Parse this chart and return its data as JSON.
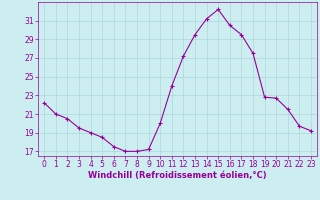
{
  "x": [
    0,
    1,
    2,
    3,
    4,
    5,
    6,
    7,
    8,
    9,
    10,
    11,
    12,
    13,
    14,
    15,
    16,
    17,
    18,
    19,
    20,
    21,
    22,
    23
  ],
  "y": [
    22.2,
    21.0,
    20.5,
    19.5,
    19.0,
    18.5,
    17.5,
    17.0,
    17.0,
    17.2,
    20.0,
    24.0,
    27.2,
    29.5,
    31.2,
    32.2,
    30.5,
    29.5,
    27.5,
    22.8,
    22.7,
    21.5,
    19.7,
    19.2
  ],
  "line_color": "#990099",
  "marker": "+",
  "marker_size": 3,
  "marker_linewidth": 0.8,
  "background_color": "#cceef0",
  "grid_color": "#aad8dc",
  "xlabel": "Windchill (Refroidissement éolien,°C)",
  "xlim": [
    -0.5,
    23.5
  ],
  "ylim": [
    16.5,
    33.0
  ],
  "yticks": [
    17,
    19,
    21,
    23,
    25,
    27,
    29,
    31
  ],
  "xticks": [
    0,
    1,
    2,
    3,
    4,
    5,
    6,
    7,
    8,
    9,
    10,
    11,
    12,
    13,
    14,
    15,
    16,
    17,
    18,
    19,
    20,
    21,
    22,
    23
  ],
  "axis_color": "#990099",
  "tick_color": "#990099",
  "label_color": "#990099",
  "tick_fontsize": 5.5,
  "xlabel_fontsize": 6.0
}
